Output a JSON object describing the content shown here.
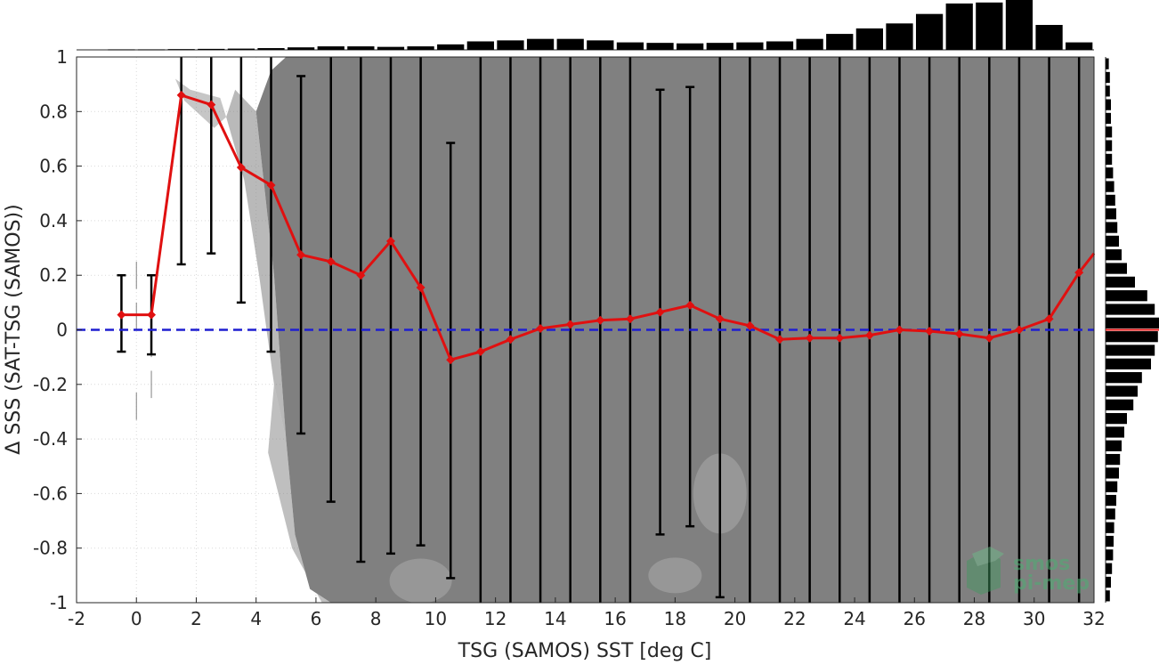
{
  "chart_data": {
    "type": "scatter",
    "title": "",
    "xlabel": "TSG (SAMOS) SST [deg C]",
    "ylabel": "Δ SSS (SAT-TSG (SAMOS))",
    "xlim": [
      -2,
      32
    ],
    "ylim": [
      -1,
      1
    ],
    "xticks": [
      "-2",
      "0",
      "2",
      "4",
      "6",
      "8",
      "10",
      "12",
      "14",
      "16",
      "18",
      "20",
      "22",
      "24",
      "26",
      "28",
      "30",
      "32"
    ],
    "yticks": [
      "-1",
      "-0.8",
      "-0.6",
      "-0.4",
      "-0.2",
      "0",
      "0.2",
      "0.4",
      "0.6",
      "0.8",
      "1"
    ],
    "grid": true,
    "zero_line": {
      "y": 0,
      "style": "dashed",
      "color": "#1f1fd1"
    },
    "scatter_color": "#808080",
    "series": [
      {
        "type": "line",
        "color": "#e01010",
        "x": [
          -0.5,
          0.5,
          1.5,
          2.5,
          3.5,
          4.5,
          5.5,
          6.5,
          7.5,
          8.5,
          9.5,
          10.5,
          11.5,
          12.5,
          13.5,
          14.5,
          15.5,
          16.5,
          17.5,
          18.5,
          19.5,
          20.5,
          21.5,
          22.5,
          23.5,
          24.5,
          25.5,
          26.5,
          27.5,
          28.5,
          29.5,
          30.5,
          31.5,
          32
        ],
        "y": [
          0.055,
          0.055,
          0.86,
          0.825,
          0.595,
          0.53,
          0.275,
          0.25,
          0.2,
          0.325,
          0.155,
          -0.11,
          -0.08,
          -0.035,
          0.005,
          0.02,
          0.035,
          0.04,
          0.065,
          0.09,
          0.04,
          0.015,
          -0.035,
          -0.03,
          -0.03,
          -0.02,
          0.0,
          -0.005,
          -0.015,
          -0.03,
          0.0,
          0.04,
          0.21,
          0.28
        ]
      }
    ],
    "errorbars": {
      "color": "#000000",
      "x": [
        -0.5,
        0.5,
        1.5,
        2.5,
        3.5,
        4.5,
        5.5,
        6.5,
        7.5,
        8.5,
        9.5,
        10.5,
        11.5,
        12.5,
        13.5,
        14.5,
        15.5,
        16.5,
        17.5,
        18.5,
        19.5,
        20.5,
        21.5,
        22.5,
        23.5,
        24.5,
        25.5,
        26.5,
        27.5,
        28.5,
        29.5,
        30.5,
        31.5
      ],
      "low": [
        -0.08,
        -0.09,
        0.24,
        0.28,
        0.1,
        -0.08,
        -0.38,
        -0.63,
        -0.85,
        -0.82,
        -0.79,
        -0.91,
        -1.0,
        -1.0,
        -1.0,
        -1.0,
        -1.0,
        -1.0,
        -0.75,
        -0.72,
        -0.98,
        -1.0,
        -1.0,
        -1.0,
        -1.0,
        -1.0,
        -1.0,
        -1.0,
        -1.0,
        -1.0,
        -1.0,
        -1.0,
        -1.0
      ],
      "high": [
        0.2,
        0.2,
        1.0,
        1.0,
        1.0,
        1.0,
        0.93,
        1.0,
        1.0,
        1.0,
        1.0,
        0.685,
        1.0,
        1.0,
        1.0,
        1.0,
        1.0,
        1.0,
        0.88,
        0.89,
        1.0,
        1.0,
        1.0,
        1.0,
        1.0,
        1.0,
        1.0,
        1.0,
        1.0,
        1.0,
        1.0,
        1.0,
        1.0
      ]
    },
    "hist_top": {
      "color": "#000000",
      "x": [
        -0.5,
        0.5,
        1.5,
        2.5,
        3.5,
        4.5,
        5.5,
        6.5,
        7.5,
        8.5,
        9.5,
        10.5,
        11.5,
        12.5,
        13.5,
        14.5,
        15.5,
        16.5,
        17.5,
        18.5,
        19.5,
        20.5,
        21.5,
        22.5,
        23.5,
        24.5,
        25.5,
        26.5,
        27.5,
        28.5,
        29.5,
        30.5,
        31.5
      ],
      "values": [
        0.01,
        0.01,
        0.015,
        0.02,
        0.025,
        0.035,
        0.05,
        0.07,
        0.07,
        0.06,
        0.07,
        0.11,
        0.17,
        0.19,
        0.22,
        0.22,
        0.19,
        0.15,
        0.14,
        0.13,
        0.14,
        0.15,
        0.17,
        0.22,
        0.32,
        0.43,
        0.53,
        0.72,
        0.93,
        0.95,
        1.0,
        0.5,
        0.15
      ]
    },
    "hist_right": {
      "color": "#000000",
      "marker_color": "#e01010",
      "y": [
        -0.975,
        -0.925,
        -0.875,
        -0.825,
        -0.775,
        -0.725,
        -0.675,
        -0.625,
        -0.575,
        -0.525,
        -0.475,
        -0.425,
        -0.375,
        -0.325,
        -0.275,
        -0.225,
        -0.175,
        -0.125,
        -0.075,
        -0.025,
        0.025,
        0.075,
        0.125,
        0.175,
        0.225,
        0.275,
        0.325,
        0.375,
        0.425,
        0.475,
        0.525,
        0.575,
        0.625,
        0.675,
        0.725,
        0.775,
        0.825,
        0.875,
        0.925,
        0.975
      ],
      "values": [
        0.08,
        0.1,
        0.12,
        0.14,
        0.15,
        0.16,
        0.18,
        0.2,
        0.22,
        0.25,
        0.27,
        0.3,
        0.35,
        0.4,
        0.52,
        0.6,
        0.68,
        0.85,
        0.92,
        0.98,
        1.0,
        0.92,
        0.78,
        0.55,
        0.4,
        0.3,
        0.25,
        0.22,
        0.2,
        0.18,
        0.16,
        0.14,
        0.12,
        0.12,
        0.12,
        0.1,
        0.1,
        0.08,
        0.08,
        0.06
      ]
    }
  },
  "watermark": {
    "line1": "smos",
    "line2": "pi-mep"
  }
}
